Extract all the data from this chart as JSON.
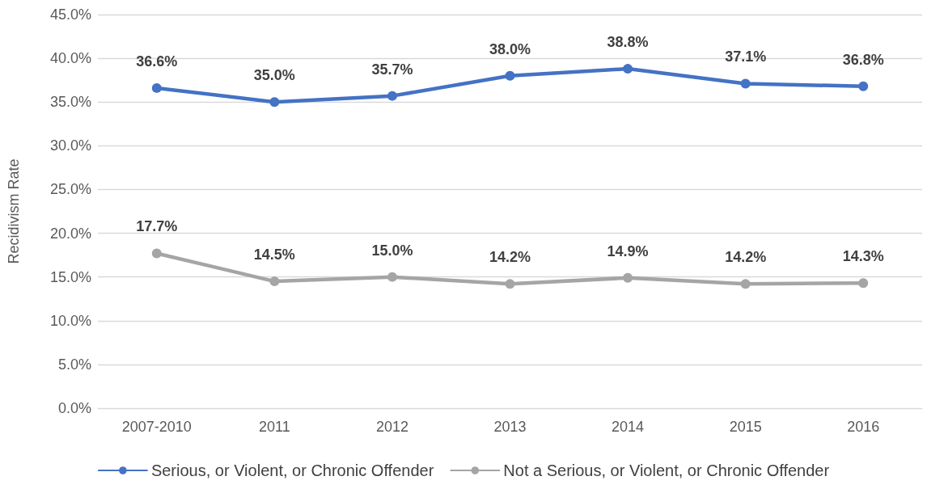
{
  "chart_data": {
    "type": "line",
    "ylabel": "Recidivism Rate",
    "categories": [
      "2007-2010",
      "2011",
      "2012",
      "2013",
      "2014",
      "2015",
      "2016"
    ],
    "series": [
      {
        "name": "Serious, or Violent, or Chronic Offender",
        "color": "#4472c4",
        "values": [
          36.6,
          35.0,
          35.7,
          38.0,
          38.8,
          37.1,
          36.8
        ],
        "value_labels": [
          "36.6%",
          "35.0%",
          "35.7%",
          "38.0%",
          "38.8%",
          "37.1%",
          "36.8%"
        ]
      },
      {
        "name": "Not a Serious, or Violent, or Chronic Offender",
        "color": "#a5a5a5",
        "values": [
          17.7,
          14.5,
          15.0,
          14.2,
          14.9,
          14.2,
          14.3
        ],
        "value_labels": [
          "17.7%",
          "14.5%",
          "15.0%",
          "14.2%",
          "14.9%",
          "14.2%",
          "14.3%"
        ]
      }
    ],
    "ylim": [
      0,
      45
    ],
    "yticks": [
      {
        "value": 0,
        "label": "0.0%"
      },
      {
        "value": 5,
        "label": "5.0%"
      },
      {
        "value": 10,
        "label": "10.0%"
      },
      {
        "value": 15,
        "label": "15.0%"
      },
      {
        "value": 20,
        "label": "20.0%"
      },
      {
        "value": 25,
        "label": "25.0%"
      },
      {
        "value": 30,
        "label": "30.0%"
      },
      {
        "value": 35,
        "label": "35.0%"
      },
      {
        "value": 40,
        "label": "40.0%"
      },
      {
        "value": 45,
        "label": "45.0%"
      }
    ],
    "grid": "y",
    "legend": "bottom",
    "marker": "circle",
    "line_style": "solid"
  }
}
